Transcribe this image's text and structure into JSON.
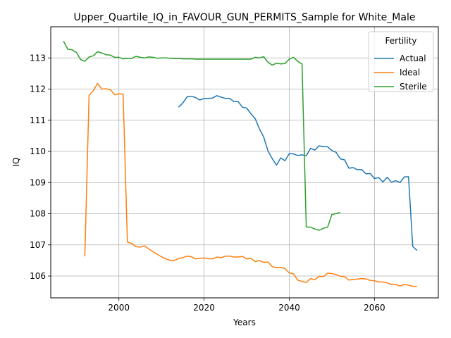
{
  "chart_data": {
    "type": "line",
    "title": "Upper_Quartile_IQ_in_FAVOUR_GUN_PERMITS_Sample for White_Male",
    "xlabel": "Years",
    "ylabel": "IQ",
    "xlim": [
      1984,
      2075
    ],
    "ylim": [
      105.3,
      114.0
    ],
    "xticks": [
      2000,
      2020,
      2040,
      2060
    ],
    "yticks": [
      106,
      107,
      108,
      109,
      110,
      111,
      112,
      113
    ],
    "grid": true,
    "legend": {
      "title": "Fertility",
      "placement": "top-right"
    },
    "series": [
      {
        "name": "Actual",
        "color": "#1f77b4",
        "x": [
          2014,
          2015,
          2016,
          2017,
          2018,
          2019,
          2020,
          2021,
          2022,
          2023,
          2024,
          2025,
          2026,
          2027,
          2028,
          2029,
          2030,
          2031,
          2032,
          2033,
          2034,
          2035,
          2036,
          2037,
          2038,
          2039,
          2040,
          2041,
          2042,
          2043,
          2044,
          2045,
          2046,
          2047,
          2048,
          2049,
          2050,
          2051,
          2052,
          2053,
          2054,
          2055,
          2056,
          2057,
          2058,
          2059,
          2060,
          2061,
          2062,
          2063,
          2064,
          2065,
          2066,
          2067,
          2068,
          2069,
          2070
        ],
        "values": [
          111.42,
          111.55,
          111.75,
          111.77,
          111.73,
          111.65,
          111.7,
          111.7,
          111.71,
          111.79,
          111.74,
          111.7,
          111.7,
          111.6,
          111.6,
          111.42,
          111.39,
          111.21,
          111.05,
          110.72,
          110.46,
          110.02,
          109.77,
          109.56,
          109.79,
          109.7,
          109.93,
          109.92,
          109.87,
          109.89,
          109.86,
          110.1,
          110.04,
          110.18,
          110.15,
          110.15,
          110.03,
          109.97,
          109.76,
          109.73,
          109.46,
          109.48,
          109.41,
          109.42,
          109.28,
          109.29,
          109.13,
          109.16,
          109.02,
          109.17,
          109.01,
          109.06,
          109.0,
          109.18,
          109.19,
          106.95,
          106.82
        ]
      },
      {
        "name": "Ideal",
        "color": "#ff7f0e",
        "x": [
          1992,
          1993,
          1994,
          1995,
          1996,
          1997,
          1998,
          1999,
          2000,
          2001,
          2002,
          2003,
          2004,
          2005,
          2006,
          2007,
          2008,
          2009,
          2010,
          2011,
          2012,
          2013,
          2014,
          2015,
          2016,
          2017,
          2018,
          2019,
          2020,
          2021,
          2022,
          2023,
          2024,
          2025,
          2026,
          2027,
          2028,
          2029,
          2030,
          2031,
          2032,
          2033,
          2034,
          2035,
          2036,
          2037,
          2038,
          2039,
          2040,
          2041,
          2042,
          2043,
          2044,
          2045,
          2046,
          2047,
          2048,
          2049,
          2050,
          2051,
          2052,
          2053,
          2054,
          2055,
          2056,
          2057,
          2058,
          2059,
          2060,
          2061,
          2062,
          2063,
          2064,
          2065,
          2066,
          2067,
          2068,
          2069,
          2070
        ],
        "values": [
          106.63,
          111.8,
          111.95,
          112.18,
          112.0,
          112.01,
          111.98,
          111.82,
          111.85,
          111.84,
          107.09,
          107.05,
          106.94,
          106.93,
          106.97,
          106.87,
          106.78,
          106.7,
          106.62,
          106.55,
          106.51,
          106.5,
          106.56,
          106.59,
          106.64,
          106.62,
          106.55,
          106.57,
          106.58,
          106.56,
          106.55,
          106.61,
          106.59,
          106.64,
          106.64,
          106.61,
          106.61,
          106.63,
          106.55,
          106.57,
          106.46,
          106.5,
          106.44,
          106.45,
          106.3,
          106.27,
          106.28,
          106.24,
          106.1,
          106.07,
          105.87,
          105.83,
          105.79,
          105.92,
          105.88,
          105.99,
          105.98,
          106.09,
          106.08,
          106.05,
          105.99,
          105.98,
          105.87,
          105.89,
          105.9,
          105.92,
          105.91,
          105.86,
          105.85,
          105.81,
          105.81,
          105.78,
          105.73,
          105.73,
          105.68,
          105.73,
          105.71,
          105.67,
          105.67
        ]
      },
      {
        "name": "Sterile",
        "color": "#2ca02c",
        "x": [
          1987,
          1988,
          1989,
          1990,
          1991,
          1992,
          1993,
          1994,
          1995,
          1996,
          1997,
          1998,
          1999,
          2000,
          2001,
          2002,
          2003,
          2004,
          2005,
          2006,
          2007,
          2008,
          2009,
          2010,
          2011,
          2012,
          2013,
          2014,
          2015,
          2016,
          2017,
          2018,
          2019,
          2020,
          2021,
          2022,
          2023,
          2024,
          2025,
          2026,
          2027,
          2028,
          2029,
          2030,
          2031,
          2032,
          2033,
          2034,
          2035,
          2036,
          2037,
          2038,
          2039,
          2040,
          2041,
          2042,
          2043,
          2044,
          2045,
          2046,
          2047,
          2048,
          2049,
          2050,
          2051,
          2052
        ],
        "values": [
          113.54,
          113.28,
          113.26,
          113.18,
          112.95,
          112.89,
          113.03,
          113.07,
          113.2,
          113.16,
          113.1,
          113.09,
          113.02,
          113.02,
          112.97,
          112.99,
          112.98,
          113.05,
          113.02,
          113.0,
          113.03,
          113.02,
          112.99,
          113.0,
          113.0,
          112.99,
          112.98,
          112.98,
          112.97,
          112.97,
          112.97,
          112.96,
          112.96,
          112.96,
          112.96,
          112.96,
          112.96,
          112.96,
          112.96,
          112.96,
          112.96,
          112.96,
          112.96,
          112.96,
          112.96,
          113.02,
          113.0,
          113.04,
          112.86,
          112.77,
          112.83,
          112.81,
          112.82,
          112.96,
          113.02,
          112.89,
          112.81,
          107.57,
          107.57,
          107.51,
          107.47,
          107.53,
          107.57,
          107.97,
          108.01,
          108.04
        ]
      }
    ]
  }
}
